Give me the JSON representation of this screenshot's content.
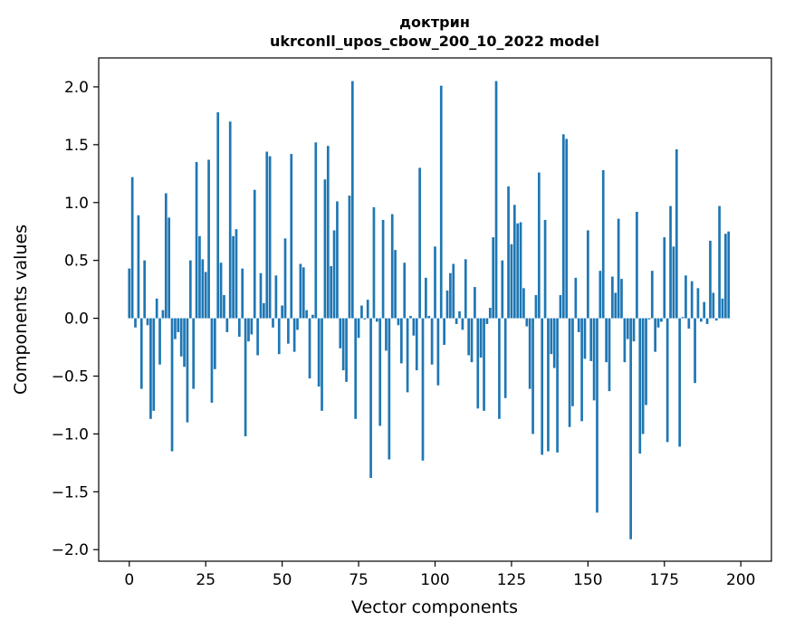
{
  "chart_data": {
    "type": "bar",
    "title": "доктрин",
    "subtitle": "ukrconll_upos_cbow_200_10_2022 model",
    "xlabel": "Vector components",
    "ylabel": "Components values",
    "xlim": [
      -10,
      210
    ],
    "ylim": [
      -2.1,
      2.25
    ],
    "xticks": [
      0,
      25,
      50,
      75,
      100,
      125,
      150,
      175,
      200
    ],
    "yticks": [
      -2.0,
      -1.5,
      -1.0,
      -0.5,
      0.0,
      0.5,
      1.0,
      1.5,
      2.0
    ],
    "bar_color": "#1f77b4",
    "grid": false,
    "values": [
      0.43,
      1.22,
      -0.08,
      0.89,
      -0.61,
      0.5,
      -0.06,
      -0.87,
      -0.8,
      0.17,
      -0.4,
      0.07,
      1.08,
      0.87,
      -1.15,
      -0.18,
      -0.12,
      -0.33,
      -0.42,
      -0.9,
      0.5,
      -0.61,
      1.35,
      0.71,
      0.51,
      0.4,
      1.37,
      -0.73,
      -0.44,
      1.78,
      0.48,
      0.2,
      -0.12,
      1.7,
      0.71,
      0.77,
      -0.16,
      0.43,
      -1.02,
      -0.2,
      -0.14,
      1.11,
      -0.32,
      0.39,
      0.13,
      1.44,
      1.4,
      -0.08,
      0.37,
      -0.31,
      0.11,
      0.69,
      -0.22,
      1.42,
      -0.29,
      -0.1,
      0.47,
      0.44,
      0.07,
      -0.52,
      0.03,
      1.52,
      -0.59,
      -0.8,
      1.2,
      1.49,
      0.45,
      0.76,
      1.01,
      -0.26,
      -0.45,
      -0.55,
      1.06,
      2.05,
      -0.87,
      -0.17,
      0.11,
      -0.01,
      0.16,
      -1.38,
      0.96,
      -0.03,
      -0.93,
      0.85,
      -0.28,
      -1.22,
      0.9,
      0.59,
      -0.06,
      -0.39,
      0.48,
      -0.64,
      0.02,
      -0.15,
      -0.45,
      1.3,
      -1.23,
      0.35,
      0.02,
      -0.4,
      0.62,
      -0.58,
      2.01,
      -0.23,
      0.24,
      0.39,
      0.47,
      -0.05,
      0.06,
      -0.1,
      0.51,
      -0.32,
      -0.38,
      0.27,
      -0.78,
      -0.34,
      -0.8,
      -0.05,
      0.09,
      0.7,
      2.05,
      -0.87,
      0.5,
      -0.69,
      1.14,
      0.64,
      0.98,
      0.82,
      0.83,
      0.26,
      -0.07,
      -0.61,
      -1.0,
      0.2,
      1.26,
      -1.18,
      0.85,
      -1.15,
      -0.31,
      -0.43,
      -1.16,
      0.2,
      1.59,
      1.55,
      -0.94,
      -0.76,
      0.35,
      -0.12,
      -0.89,
      -0.35,
      0.76,
      -0.37,
      -0.71,
      -1.68,
      0.41,
      1.28,
      -0.38,
      -0.63,
      0.36,
      0.22,
      0.86,
      0.34,
      -0.38,
      -0.18,
      -1.91,
      -0.2,
      0.92,
      -1.17,
      -1.0,
      -0.75,
      -0.01,
      0.41,
      -0.29,
      -0.08,
      -0.03,
      0.7,
      -1.07,
      0.97,
      0.62,
      1.46,
      -1.11,
      0.01,
      0.37,
      -0.09,
      0.32,
      -0.56,
      0.26,
      -0.03,
      0.14,
      -0.05,
      0.67,
      0.22,
      -0.02,
      0.97,
      0.17,
      0.73,
      0.75
    ]
  }
}
